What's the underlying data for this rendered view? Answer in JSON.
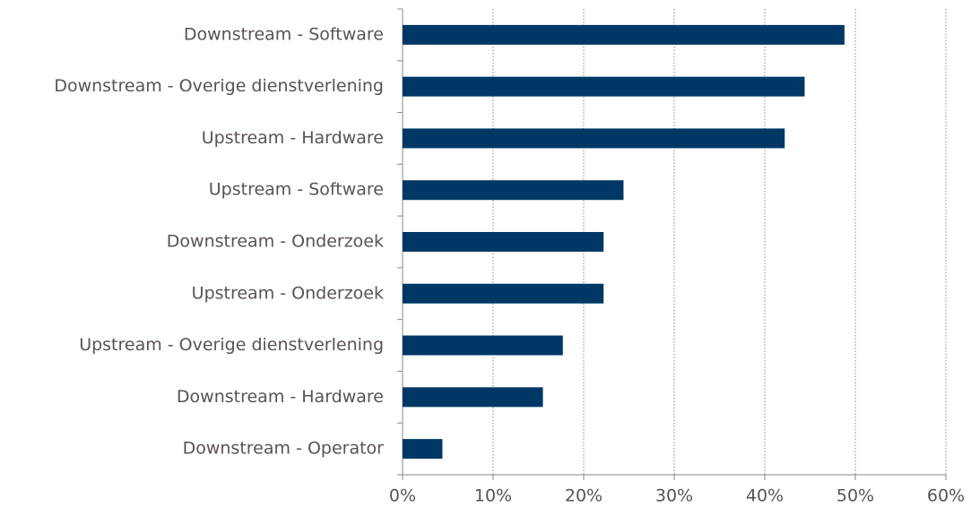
{
  "chart_data": {
    "type": "hbar",
    "categories": [
      "Downstream - Software",
      "Downstream - Overige dienstverlening",
      "Upstream - Hardware",
      "Upstream - Software",
      "Downstream - Onderzoek",
      "Upstream - Onderzoek",
      "Upstream - Overige dienstverlening",
      "Downstream - Hardware",
      "Downstream - Operator"
    ],
    "values": [
      48.8,
      44.4,
      42.2,
      24.4,
      22.2,
      22.2,
      17.7,
      15.5,
      4.4
    ],
    "color": "#003865",
    "xlim": [
      0,
      60
    ],
    "xticks": [
      {
        "value": 0,
        "label": "0%"
      },
      {
        "value": 10,
        "label": "10%"
      },
      {
        "value": 20,
        "label": "20%"
      },
      {
        "value": 30,
        "label": "30%"
      },
      {
        "value": 40,
        "label": "40%"
      },
      {
        "value": 50,
        "label": "50%"
      },
      {
        "value": 60,
        "label": "60%"
      }
    ],
    "grid": true
  }
}
